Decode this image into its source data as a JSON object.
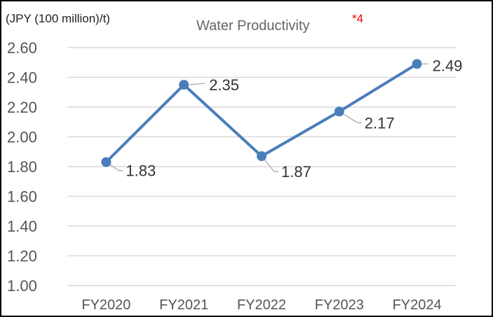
{
  "chart_data": {
    "type": "line",
    "title": "Water Productivity",
    "title_note": "*4",
    "ylabel": "(JPY (100 million)/t)",
    "xlabel": "",
    "categories": [
      "FY2020",
      "FY2021",
      "FY2022",
      "FY2023",
      "FY2024"
    ],
    "series": [
      {
        "name": "Water Productivity",
        "values": [
          1.83,
          2.35,
          1.87,
          2.17,
          2.49
        ],
        "color": "#4a7ebb"
      }
    ],
    "data_labels": [
      "1.83",
      "2.35",
      "1.87",
      "2.17",
      "2.49"
    ],
    "ylim": [
      1.0,
      2.6
    ],
    "yticks": [
      "1.00",
      "1.20",
      "1.40",
      "1.60",
      "1.80",
      "2.00",
      "2.20",
      "2.40",
      "2.60"
    ],
    "grid": true,
    "legend": "none"
  }
}
